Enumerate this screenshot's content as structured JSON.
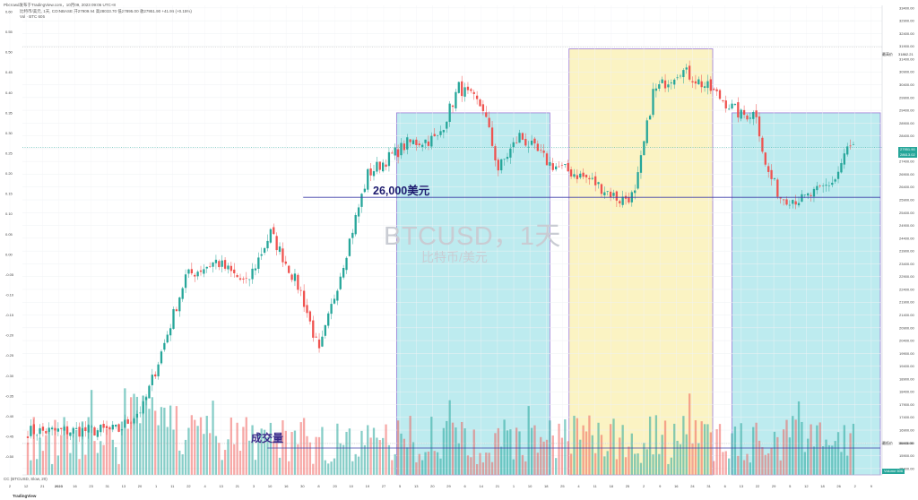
{
  "header": {
    "line1": "Pbcrowd发布于TradingView.com，10月09, 2023 09:06 UTC+8",
    "line2": "比特币/美元, 1天, COINBASE  开27909.94  高28033.70  低27895.00  收27951.90  +41.96 (+0.15%)",
    "line3": "Vol · BTC  606"
  },
  "watermark": {
    "title": "BTCUSD，1天",
    "subtitle": "比特币/美元"
  },
  "annotations": {
    "level_label": "26,000美元",
    "volume_label": "成交量"
  },
  "footer": {
    "indicator": "CC (BTCUSD, Slow, 20)",
    "logo": "TradingView"
  },
  "price_badges": [
    {
      "text": "27951.90",
      "color": "#26a69a"
    },
    {
      "text": "28613.02",
      "color": "#26a69a"
    },
    {
      "text": "Volume  606",
      "color": "#26a69a"
    }
  ],
  "reference_lines": [
    {
      "label": "最高价",
      "value_text": "31862.21"
    },
    {
      "label": "最低价",
      "value_text": "15443.00"
    }
  ],
  "colors": {
    "up": "#26a69a",
    "down": "#ef5350",
    "cyan_zone": "#bdebef",
    "yellow_zone": "#fbf3c3",
    "zone_border": "#9c7ad6",
    "level_line": "#3f3fa8"
  },
  "chart_data": {
    "type": "candlestick",
    "symbol": "BTCUSD",
    "interval": "1D",
    "ylim": [
      15150,
      33500
    ],
    "price_axis_ticks": [
      33400,
      32900,
      32400,
      31900,
      31400,
      30900,
      30400,
      29900,
      29400,
      28900,
      28400,
      27900,
      27400,
      26900,
      26400,
      25900,
      25400,
      24900,
      24400,
      23900,
      23400,
      22900,
      22400,
      21900,
      21400,
      20900,
      20400,
      19900,
      19400,
      18900,
      18400,
      17900,
      17400,
      16900,
      16400,
      15900,
      15400
    ],
    "left_axis_ticks": [
      "0.60",
      "0.55",
      "0.50",
      "0.45",
      "0.40",
      "0.35",
      "0.30",
      "0.25",
      "0.20",
      "0.15",
      "0.10",
      "0.05",
      "0.00",
      "-0.05",
      "-0.10",
      "-0.15",
      "-0.20",
      "-0.25",
      "-0.30",
      "-0.35",
      "-0.40",
      "-0.45",
      "-0.50",
      "-0.55"
    ],
    "x_tick_labels": [
      "5",
      "12",
      "19",
      "26",
      "2023",
      "16",
      "23",
      "30",
      "13",
      "20",
      "27",
      "6",
      "13",
      "20",
      "27",
      "3",
      "10",
      "17",
      "24",
      "8",
      "15",
      "22",
      "29",
      "5",
      "12",
      "19",
      "26",
      "3",
      "10",
      "17",
      "24",
      "31",
      "7",
      "14",
      "21",
      "28",
      "4",
      "11",
      "18",
      "25",
      "2",
      "9",
      "16",
      "23",
      "30",
      "6",
      "13",
      "20",
      "27",
      "3",
      "10",
      "17",
      "24",
      "31",
      "7",
      "14",
      "21",
      "28",
      "4",
      "11",
      "18",
      "25",
      "2",
      "9",
      "16",
      "23"
    ],
    "x_tick_labels_visible": [
      "2",
      "12",
      "21",
      "2023",
      "16",
      "23",
      "31",
      "13",
      "20",
      "1",
      "11",
      "22",
      "4",
      "13",
      "21",
      "3",
      "10",
      "16",
      "30",
      "8",
      "20",
      "10",
      "19",
      "27",
      "5",
      "13",
      "20",
      "29",
      "6",
      "14",
      "21",
      "1",
      "10",
      "18",
      "25",
      "4",
      "11",
      "18",
      "25",
      "2",
      "9",
      "16",
      "24",
      "31",
      "6",
      "13",
      "22",
      "29",
      "5",
      "12",
      "18",
      "26",
      "2",
      "9"
    ],
    "num_candles": 273,
    "ohlc_waypoints": [
      {
        "day": 0,
        "close": 16850
      },
      {
        "day": 30,
        "close": 16900
      },
      {
        "day": 38,
        "close": 17800
      },
      {
        "day": 45,
        "close": 20300
      },
      {
        "day": 52,
        "close": 22900
      },
      {
        "day": 62,
        "close": 23500
      },
      {
        "day": 72,
        "close": 22600
      },
      {
        "day": 80,
        "close": 24600
      },
      {
        "day": 90,
        "close": 22300
      },
      {
        "day": 96,
        "close": 19900
      },
      {
        "day": 102,
        "close": 22600
      },
      {
        "day": 112,
        "close": 26900
      },
      {
        "day": 125,
        "close": 28100
      },
      {
        "day": 135,
        "close": 28300
      },
      {
        "day": 142,
        "close": 30300
      },
      {
        "day": 150,
        "close": 29500
      },
      {
        "day": 155,
        "close": 27100
      },
      {
        "day": 162,
        "close": 28400
      },
      {
        "day": 172,
        "close": 27300
      },
      {
        "day": 185,
        "close": 26700
      },
      {
        "day": 195,
        "close": 25900
      },
      {
        "day": 200,
        "close": 26100
      },
      {
        "day": 206,
        "close": 30100
      },
      {
        "day": 215,
        "close": 31000
      },
      {
        "day": 225,
        "close": 30200
      },
      {
        "day": 235,
        "close": 29200
      },
      {
        "day": 240,
        "close": 29300
      },
      {
        "day": 243,
        "close": 27200
      },
      {
        "day": 248,
        "close": 26000
      },
      {
        "day": 255,
        "close": 25900
      },
      {
        "day": 260,
        "close": 26200
      },
      {
        "day": 266,
        "close": 26700
      },
      {
        "day": 270,
        "close": 27900
      },
      {
        "day": 272,
        "close": 27950
      }
    ],
    "zones": [
      {
        "type": "cyan",
        "from_day": 154,
        "to_day": 218,
        "top": 29300,
        "bottom": 15150
      },
      {
        "type": "yellow",
        "from_day": 226,
        "to_day": 286,
        "top": 31800,
        "bottom": 15150
      },
      {
        "type": "cyan",
        "from_day": 294,
        "to_day": 356,
        "top": 29300,
        "bottom": 15150
      }
    ],
    "level_line": {
      "value": 26000,
      "from_day": 115,
      "to_day": 356
    },
    "high_line": 31862.21,
    "low_line": 15443.0,
    "last_close": 27951.9
  }
}
